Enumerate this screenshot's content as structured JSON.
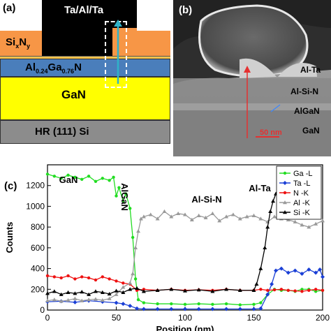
{
  "panel_a": {
    "label": "(a)",
    "layers": {
      "contact": "Ta/Al/Ta",
      "sixny_base": "Si",
      "sixny_sub1": "x",
      "sixny_mid": "N",
      "sixny_sub2": "y",
      "algan_al": "Al",
      "algan_sub1": "0.24",
      "algan_ga": "Ga",
      "algan_sub2": "0.76",
      "algan_n": "N",
      "gan": "GaN",
      "substrate": "HR (111) Si"
    },
    "colors": {
      "contact": "#000000",
      "sixny": "#f79646",
      "algan": "#4a7ebb",
      "gan": "#ffff00",
      "substrate": "#8c8c8c",
      "arrow": "#2fb3c9"
    }
  },
  "panel_b": {
    "label": "(b)",
    "labels": {
      "alta": "Al-Ta",
      "alsin": "Al-Si-N",
      "algan": "AlGaN",
      "gan": "GaN",
      "scale": "50 nm"
    }
  },
  "panel_c": {
    "label": "(c)",
    "annotations": {
      "gan": "GaN",
      "algan": "AlGaN",
      "alsin": "Al-Si-N",
      "alta": "Al-Ta"
    },
    "chart_data": {
      "type": "line",
      "xlabel": "Position (nm)",
      "ylabel": "Counts",
      "xlim": [
        0,
        200
      ],
      "ylim": [
        0,
        1400
      ],
      "xticks": [
        0,
        50,
        100,
        150,
        200
      ],
      "yticks": [
        0,
        200,
        400,
        600,
        800,
        1000,
        1200
      ],
      "legend_position": "top-right",
      "series": [
        {
          "name": "Ga -L",
          "color": "#22dd22",
          "marker": "circle",
          "x": [
            0,
            5,
            10,
            15,
            20,
            25,
            30,
            35,
            40,
            45,
            48,
            50,
            52,
            55,
            57,
            60,
            62,
            64,
            66,
            70,
            80,
            90,
            100,
            110,
            120,
            130,
            140,
            150,
            155,
            160,
            165,
            170,
            175,
            180,
            185,
            190,
            195,
            200
          ],
          "y": [
            1310,
            1290,
            1270,
            1300,
            1280,
            1260,
            1290,
            1240,
            1270,
            1250,
            1280,
            1100,
            1180,
            1050,
            1120,
            980,
            700,
            300,
            100,
            70,
            60,
            60,
            55,
            60,
            55,
            60,
            50,
            55,
            70,
            150,
            200,
            190,
            190,
            180,
            200,
            200,
            180,
            190
          ]
        },
        {
          "name": "Ta -L",
          "color": "#1a3fd6",
          "marker": "diamond",
          "x": [
            0,
            10,
            20,
            30,
            40,
            50,
            55,
            60,
            65,
            70,
            80,
            90,
            100,
            110,
            120,
            130,
            140,
            150,
            155,
            160,
            163,
            166,
            170,
            175,
            180,
            185,
            190,
            195,
            198,
            200
          ],
          "y": [
            80,
            85,
            75,
            90,
            80,
            70,
            60,
            40,
            15,
            10,
            10,
            10,
            10,
            10,
            10,
            10,
            10,
            10,
            15,
            150,
            250,
            380,
            400,
            360,
            380,
            350,
            390,
            360,
            390,
            320
          ]
        },
        {
          "name": "N -K",
          "color": "#ee1111",
          "marker": "circle",
          "x": [
            0,
            5,
            10,
            15,
            20,
            25,
            30,
            35,
            40,
            45,
            50,
            55,
            60,
            65,
            70,
            80,
            90,
            100,
            110,
            120,
            130,
            140,
            150,
            155,
            160,
            165,
            170,
            175,
            180,
            185,
            190,
            195,
            200
          ],
          "y": [
            330,
            320,
            310,
            330,
            300,
            320,
            310,
            290,
            320,
            300,
            280,
            260,
            250,
            190,
            200,
            190,
            200,
            190,
            195,
            190,
            200,
            190,
            190,
            200,
            190,
            195,
            200,
            190,
            185,
            180,
            190,
            200,
            190
          ]
        },
        {
          "name": "Al -K",
          "color": "#9a9a9a",
          "marker": "triangle",
          "x": [
            0,
            5,
            10,
            15,
            20,
            25,
            30,
            35,
            40,
            45,
            50,
            55,
            60,
            62,
            64,
            66,
            68,
            70,
            75,
            80,
            85,
            90,
            95,
            100,
            105,
            110,
            115,
            120,
            125,
            130,
            135,
            140,
            145,
            150,
            155,
            160,
            165,
            170,
            175,
            180,
            185,
            190,
            195,
            200
          ],
          "y": [
            90,
            100,
            85,
            95,
            110,
            90,
            100,
            105,
            95,
            110,
            150,
            220,
            260,
            350,
            600,
            760,
            880,
            900,
            920,
            880,
            950,
            900,
            930,
            920,
            870,
            910,
            890,
            930,
            860,
            900,
            920,
            880,
            900,
            910,
            880,
            850,
            900,
            880,
            870,
            850,
            820,
            800,
            830,
            860
          ]
        },
        {
          "name": "Si -K",
          "color": "#000000",
          "marker": "triangle",
          "x": [
            0,
            5,
            10,
            15,
            20,
            25,
            30,
            35,
            40,
            45,
            50,
            55,
            60,
            65,
            70,
            80,
            90,
            100,
            110,
            120,
            130,
            140,
            150,
            152,
            155,
            158,
            160,
            162,
            164,
            166,
            168,
            170
          ],
          "y": [
            160,
            180,
            150,
            170,
            160,
            175,
            150,
            180,
            170,
            155,
            185,
            170,
            200,
            210,
            180,
            190,
            200,
            185,
            195,
            180,
            200,
            190,
            190,
            250,
            400,
            600,
            800,
            950,
            1050,
            1120,
            1180,
            1220
          ]
        }
      ]
    }
  }
}
